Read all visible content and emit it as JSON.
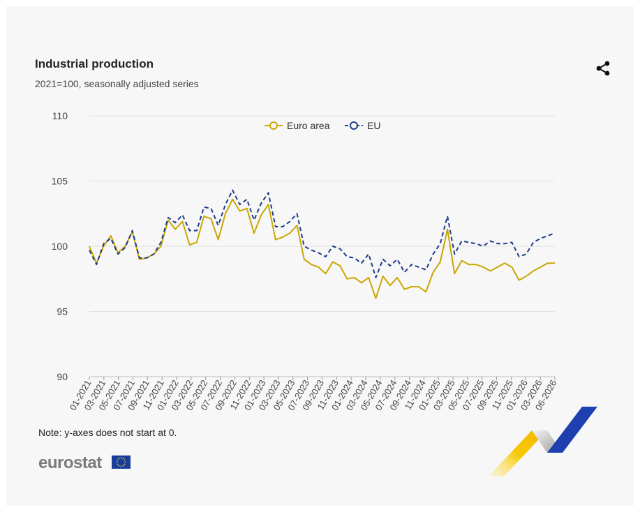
{
  "header": {
    "title": "Industrial production",
    "subtitle": "2021=100, seasonally adjusted series"
  },
  "footer": {
    "note": "Note: y-axes does not start at 0.",
    "logo_text": "eurostat"
  },
  "icons": {
    "share": "share-icon",
    "flag": "eu-flag-icon"
  },
  "colors": {
    "euro_area": "#c9a700",
    "eu": "#1f3c88",
    "grid": "#e2e2e2"
  },
  "chart_data": {
    "type": "line",
    "title": "Industrial production",
    "subtitle": "2021=100, seasonally adjusted series",
    "ylim": [
      90,
      110
    ],
    "yticks": [
      90,
      95,
      100,
      105,
      110
    ],
    "xtick_labels": [
      "01-2021",
      "03-2021",
      "05-2021",
      "07-2021",
      "09-2021",
      "11-2021",
      "01-2022",
      "03-2022",
      "05-2022",
      "07-2022",
      "09-2022",
      "11-2022",
      "01-2023",
      "03-2023",
      "05-2023",
      "07-2023",
      "09-2023",
      "11-2023",
      "01-2024",
      "03-2024",
      "05-2024",
      "07-2024",
      "09-2024",
      "11-2024",
      "01-2025",
      "03-2025",
      "05-2025",
      "07-2025",
      "09-2025",
      "11-2025",
      "01-2026",
      "03-2026",
      "06-2026"
    ],
    "legend": {
      "position": "top-center"
    },
    "grid": true,
    "series": [
      {
        "name": "Euro area",
        "style": "solid",
        "color": "#c9a700",
        "values": [
          100.0,
          98.7,
          100.0,
          100.8,
          99.5,
          100.0,
          101.1,
          99.0,
          99.1,
          99.4,
          100.0,
          102.0,
          101.3,
          101.9,
          100.1,
          100.3,
          102.3,
          102.1,
          100.5,
          102.5,
          103.6,
          102.7,
          102.9,
          101.0,
          102.4,
          103.2,
          100.5,
          100.7,
          101.0,
          101.6,
          99.0,
          98.6,
          98.4,
          97.9,
          98.8,
          98.5,
          97.5,
          97.6,
          97.2,
          97.6,
          96.0,
          97.7,
          97.0,
          97.6,
          96.7,
          96.9,
          96.9,
          96.5,
          98.0,
          98.8,
          101.3,
          97.9,
          98.9,
          98.6,
          98.6,
          98.4,
          98.1,
          98.4,
          98.7,
          98.4,
          97.4,
          97.7,
          98.1,
          98.4,
          98.7,
          98.7
        ]
      },
      {
        "name": "EU",
        "style": "dashed",
        "color": "#1f3c88",
        "values": [
          99.7,
          98.6,
          100.2,
          100.6,
          99.4,
          99.9,
          101.2,
          99.1,
          99.1,
          99.4,
          100.3,
          102.2,
          101.8,
          102.4,
          101.2,
          101.2,
          103.0,
          102.9,
          101.6,
          103.2,
          104.3,
          103.2,
          103.6,
          102.0,
          103.3,
          104.1,
          101.5,
          101.5,
          101.9,
          102.5,
          100.0,
          99.7,
          99.5,
          99.2,
          100.0,
          99.8,
          99.2,
          99.1,
          98.7,
          99.4,
          97.6,
          99.0,
          98.5,
          99.0,
          98.0,
          98.6,
          98.4,
          98.2,
          99.4,
          100.2,
          102.3,
          99.4,
          100.4,
          100.3,
          100.2,
          100.0,
          100.4,
          100.2,
          100.2,
          100.3,
          99.2,
          99.4,
          100.3,
          100.6,
          100.8,
          101.0
        ]
      }
    ]
  }
}
